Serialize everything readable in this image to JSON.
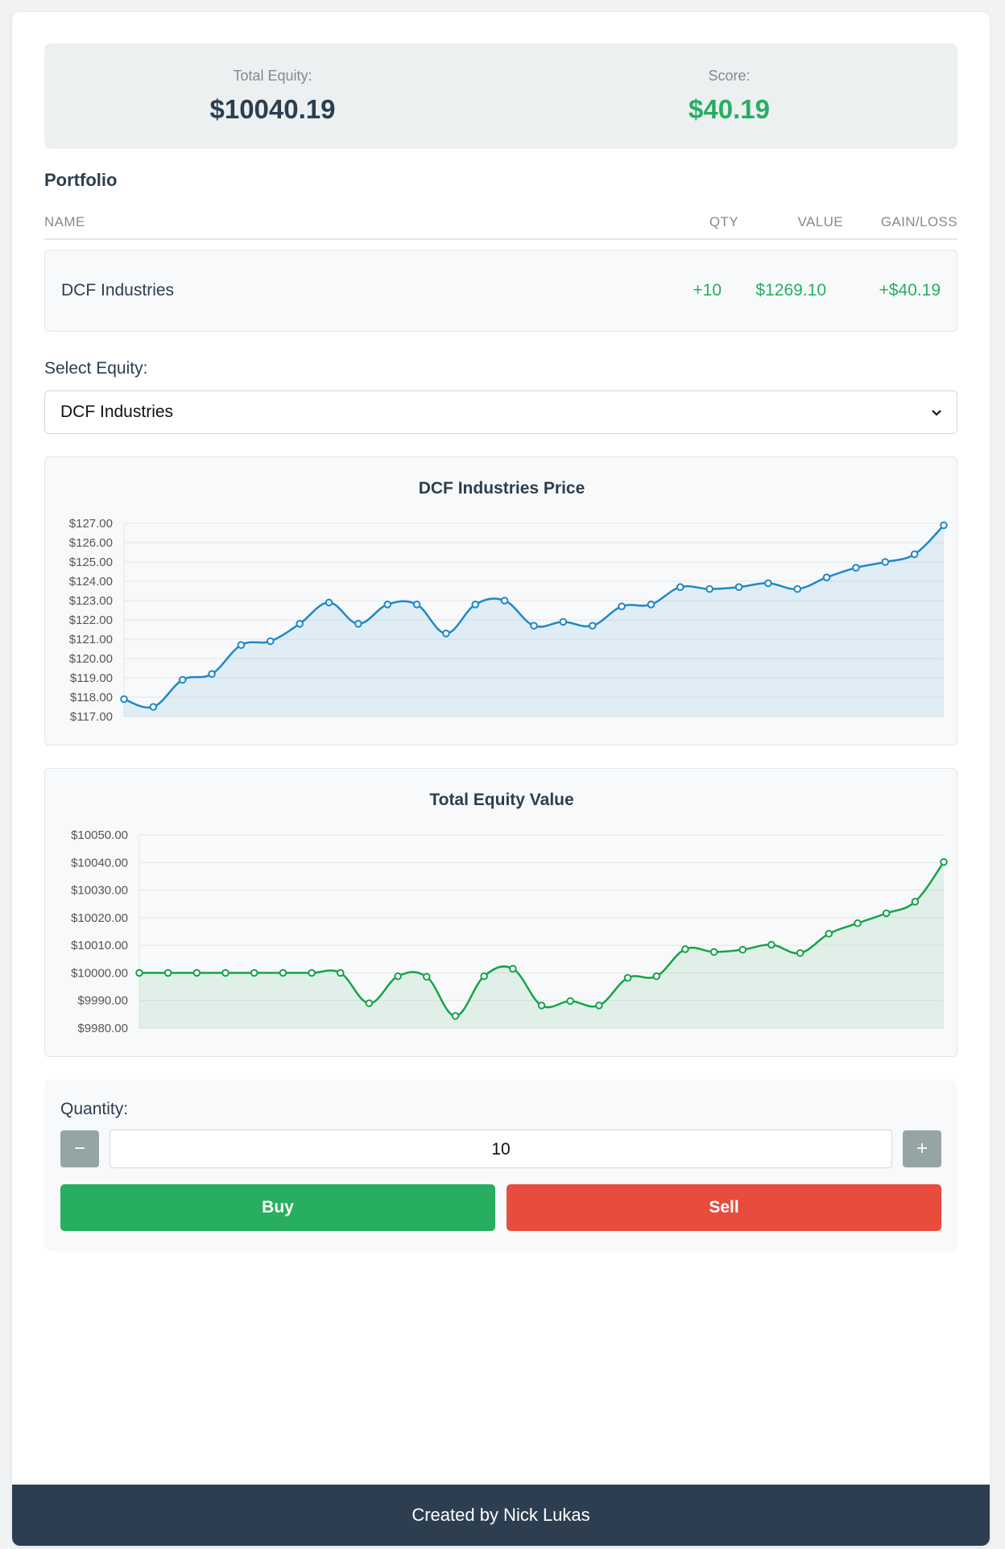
{
  "summary": {
    "equity_label": "Total Equity:",
    "equity_value": "$10040.19",
    "score_label": "Score:",
    "score_value": "$40.19"
  },
  "portfolio": {
    "title": "Portfolio",
    "columns": {
      "name": "NAME",
      "qty": "QTY",
      "value": "VALUE",
      "gain": "GAIN/LOSS"
    },
    "rows": [
      {
        "name": "DCF Industries",
        "qty": "+10",
        "value": "$1269.10",
        "gain": "+$40.19"
      }
    ]
  },
  "equity_select": {
    "label": "Select Equity:",
    "selected": "DCF Industries",
    "icon": "chevron-down-icon"
  },
  "trade": {
    "quantity_label": "Quantity:",
    "quantity_value": "10",
    "minus_label": "−",
    "plus_label": "+",
    "buy_label": "Buy",
    "sell_label": "Sell"
  },
  "footer": {
    "text": "Created by Nick Lukas"
  },
  "colors": {
    "positive": "#27ae60",
    "negative": "#e74c3c",
    "price_line": "#1e88c8",
    "equity_line": "#16a34a",
    "footer_bg": "#2c3e50"
  },
  "chart_data": [
    {
      "type": "area",
      "title": "DCF Industries Price",
      "ylim": [
        117,
        127
      ],
      "yticks": [
        "$117.00",
        "$118.00",
        "$119.00",
        "$120.00",
        "$121.00",
        "$122.00",
        "$123.00",
        "$124.00",
        "$125.00",
        "$126.00",
        "$127.00"
      ],
      "grid": true,
      "color": "#1e88c8",
      "values": [
        117.9,
        117.5,
        118.9,
        119.2,
        120.7,
        120.9,
        121.8,
        122.9,
        121.8,
        122.8,
        122.8,
        121.3,
        122.8,
        123.0,
        121.7,
        121.9,
        121.7,
        122.7,
        122.8,
        123.7,
        123.6,
        123.7,
        123.9,
        123.6,
        124.2,
        124.7,
        125.0,
        125.4,
        126.9
      ]
    },
    {
      "type": "area",
      "title": "Total Equity Value",
      "ylim": [
        9980,
        10050
      ],
      "yticks": [
        "$9980.00",
        "$9990.00",
        "$10000.00",
        "$10010.00",
        "$10020.00",
        "$10030.00",
        "$10040.00",
        "$10050.00"
      ],
      "grid": true,
      "color": "#16a34a",
      "values": [
        10000,
        10000,
        10000,
        10000,
        10000,
        10000,
        10000,
        10000,
        9989.0,
        9998.8,
        9998.6,
        9984.4,
        9998.8,
        10001.5,
        9988.2,
        9989.8,
        9988.2,
        9998.2,
        9998.8,
        10008.6,
        10007.6,
        10008.4,
        10010.2,
        10007.2,
        10014.2,
        10018.0,
        10021.6,
        10025.8,
        10040.19
      ]
    }
  ]
}
